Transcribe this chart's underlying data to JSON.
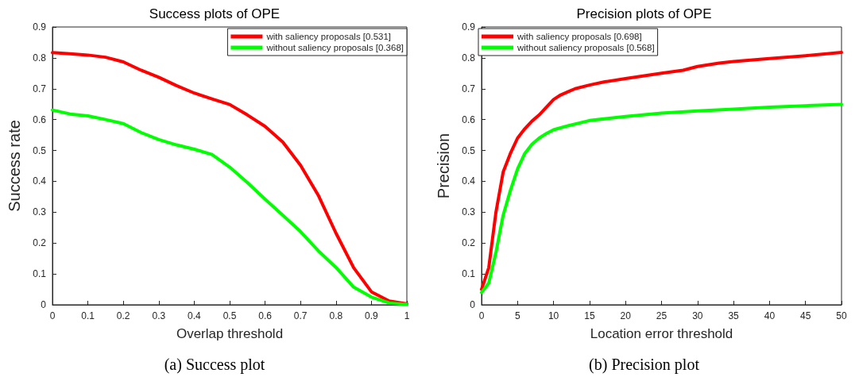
{
  "chart_data": [
    {
      "type": "line",
      "title": "Success plots of OPE",
      "xlabel": "Overlap threshold",
      "ylabel": "Success rate",
      "annotations": [
        "(a) Success plot"
      ],
      "x": [
        0,
        0.05,
        0.1,
        0.15,
        0.2,
        0.25,
        0.3,
        0.35,
        0.4,
        0.45,
        0.5,
        0.55,
        0.6,
        0.65,
        0.7,
        0.75,
        0.8,
        0.85,
        0.9,
        0.95,
        1
      ],
      "series": [
        {
          "name": "with saliency proposals [0.531]",
          "color": "#ff0000",
          "values": [
            0.817,
            0.813,
            0.809,
            0.802,
            0.787,
            0.76,
            0.737,
            0.71,
            0.686,
            0.667,
            0.649,
            0.615,
            0.578,
            0.527,
            0.452,
            0.355,
            0.232,
            0.12,
            0.042,
            0.012,
            0.003
          ]
        },
        {
          "name": "without saliency proposals [0.368]",
          "color": "#00ff00",
          "values": [
            0.631,
            0.618,
            0.612,
            0.6,
            0.587,
            0.558,
            0.535,
            0.518,
            0.504,
            0.487,
            0.446,
            0.396,
            0.342,
            0.29,
            0.237,
            0.175,
            0.121,
            0.057,
            0.025,
            0.006,
            0.001
          ]
        }
      ],
      "xlim": [
        0,
        1
      ],
      "xticks": [
        0,
        0.1,
        0.2,
        0.3,
        0.4,
        0.5,
        0.6,
        0.7,
        0.8,
        0.9,
        1
      ],
      "ylim": [
        0,
        0.9
      ],
      "yticks": [
        0,
        0.1,
        0.2,
        0.3,
        0.4,
        0.5,
        0.6,
        0.7,
        0.8,
        0.9
      ],
      "grid": false,
      "legend": "top right",
      "marker": "none",
      "line_style": "solid"
    },
    {
      "type": "line",
      "title": "Precision plots of OPE",
      "xlabel": "Location error threshold",
      "ylabel": "Precision",
      "annotations": [
        "(b) Precision plot"
      ],
      "series": [
        {
          "name": "with saliency proposals [0.698]",
          "color": "#ff0000",
          "x": [
            0,
            1,
            2,
            3,
            4,
            5,
            6,
            7,
            8,
            9,
            10,
            11,
            12,
            13,
            15,
            17,
            20,
            25,
            28,
            30,
            33,
            35,
            40,
            45,
            50
          ],
          "values": [
            0.05,
            0.12,
            0.3,
            0.43,
            0.49,
            0.54,
            0.57,
            0.595,
            0.615,
            0.64,
            0.665,
            0.68,
            0.69,
            0.7,
            0.712,
            0.722,
            0.733,
            0.75,
            0.76,
            0.772,
            0.783,
            0.788,
            0.798,
            0.807,
            0.818
          ]
        },
        {
          "name": "without saliency proposals [0.568]",
          "color": "#00ff00",
          "x": [
            0,
            1,
            2,
            3,
            4,
            5,
            6,
            7,
            8,
            9,
            10,
            12,
            15,
            20,
            25,
            30,
            35,
            40,
            45,
            50
          ],
          "values": [
            0.04,
            0.07,
            0.17,
            0.29,
            0.37,
            0.44,
            0.49,
            0.52,
            0.54,
            0.555,
            0.567,
            0.58,
            0.597,
            0.61,
            0.621,
            0.628,
            0.634,
            0.64,
            0.645,
            0.649
          ]
        }
      ],
      "xlim": [
        0,
        50
      ],
      "xticks": [
        0,
        5,
        10,
        15,
        20,
        25,
        30,
        35,
        40,
        45,
        50
      ],
      "ylim": [
        0,
        0.9
      ],
      "yticks": [
        0,
        0.1,
        0.2,
        0.3,
        0.4,
        0.5,
        0.6,
        0.7,
        0.8,
        0.9
      ],
      "grid": false,
      "legend": "top left",
      "marker": "none",
      "line_style": "solid"
    }
  ]
}
